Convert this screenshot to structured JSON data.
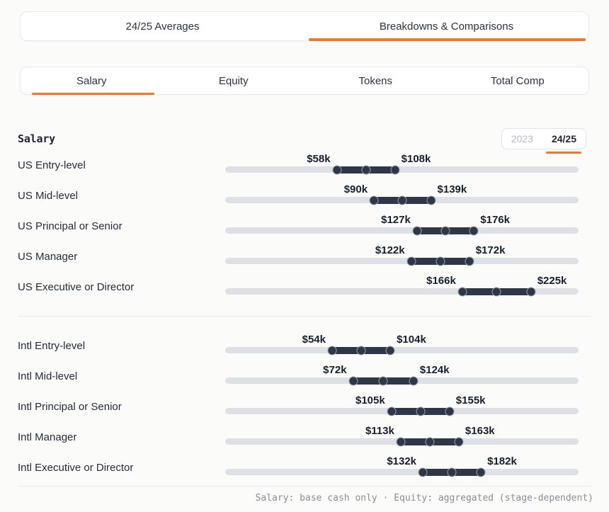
{
  "primary_tabs": {
    "items": [
      {
        "label": "24/25 Averages",
        "active": false
      },
      {
        "label": "Breakdowns & Comparisons",
        "active": true
      }
    ]
  },
  "metric_tabs": {
    "items": [
      {
        "label": "Salary",
        "active": true
      },
      {
        "label": "Equity",
        "active": false
      },
      {
        "label": "Tokens",
        "active": false
      },
      {
        "label": "Total Comp",
        "active": false
      }
    ]
  },
  "section": {
    "title": "Salary",
    "year_toggle": {
      "options": [
        {
          "label": "2023",
          "active": false
        },
        {
          "label": "24/25",
          "active": true
        }
      ]
    }
  },
  "colors": {
    "accent_orange": "#f0772b",
    "bar_navy": "#2d3748",
    "track_gray": "#dde1e6",
    "label_navy": "#17202f",
    "muted_gray": "#b8bdc6"
  },
  "chart_data": {
    "type": "bar",
    "variant": "range",
    "title": "Salary",
    "unit": "USD thousands (annual salary)",
    "scale": {
      "domain_min_k": -38,
      "domain_max_k": 266
    },
    "legend": "none",
    "groups": [
      {
        "name": "US",
        "rows": [
          {
            "label": "US Entry-level",
            "min_k": 58,
            "max_k": 108,
            "min_label": "$58k",
            "max_label": "$108k"
          },
          {
            "label": "US Mid-level",
            "min_k": 90,
            "max_k": 139,
            "min_label": "$90k",
            "max_label": "$139k"
          },
          {
            "label": "US Principal or Senior",
            "min_k": 127,
            "max_k": 176,
            "min_label": "$127k",
            "max_label": "$176k"
          },
          {
            "label": "US Manager",
            "min_k": 122,
            "max_k": 172,
            "min_label": "$122k",
            "max_label": "$172k"
          },
          {
            "label": "US Executive or Director",
            "min_k": 166,
            "max_k": 225,
            "min_label": "$166k",
            "max_label": "$225k"
          }
        ]
      },
      {
        "name": "Intl",
        "rows": [
          {
            "label": "Intl Entry-level",
            "min_k": 54,
            "max_k": 104,
            "min_label": "$54k",
            "max_label": "$104k"
          },
          {
            "label": "Intl Mid-level",
            "min_k": 72,
            "max_k": 124,
            "min_label": "$72k",
            "max_label": "$124k"
          },
          {
            "label": "Intl Principal or Senior",
            "min_k": 105,
            "max_k": 155,
            "min_label": "$105k",
            "max_label": "$155k"
          },
          {
            "label": "Intl Manager",
            "min_k": 113,
            "max_k": 163,
            "min_label": "$113k",
            "max_label": "$163k"
          },
          {
            "label": "Intl Executive or Director",
            "min_k": 132,
            "max_k": 182,
            "min_label": "$132k",
            "max_label": "$182k"
          }
        ]
      }
    ]
  },
  "footer": {
    "note": "Salary: base cash only · Equity: aggregated (stage-dependent)"
  }
}
